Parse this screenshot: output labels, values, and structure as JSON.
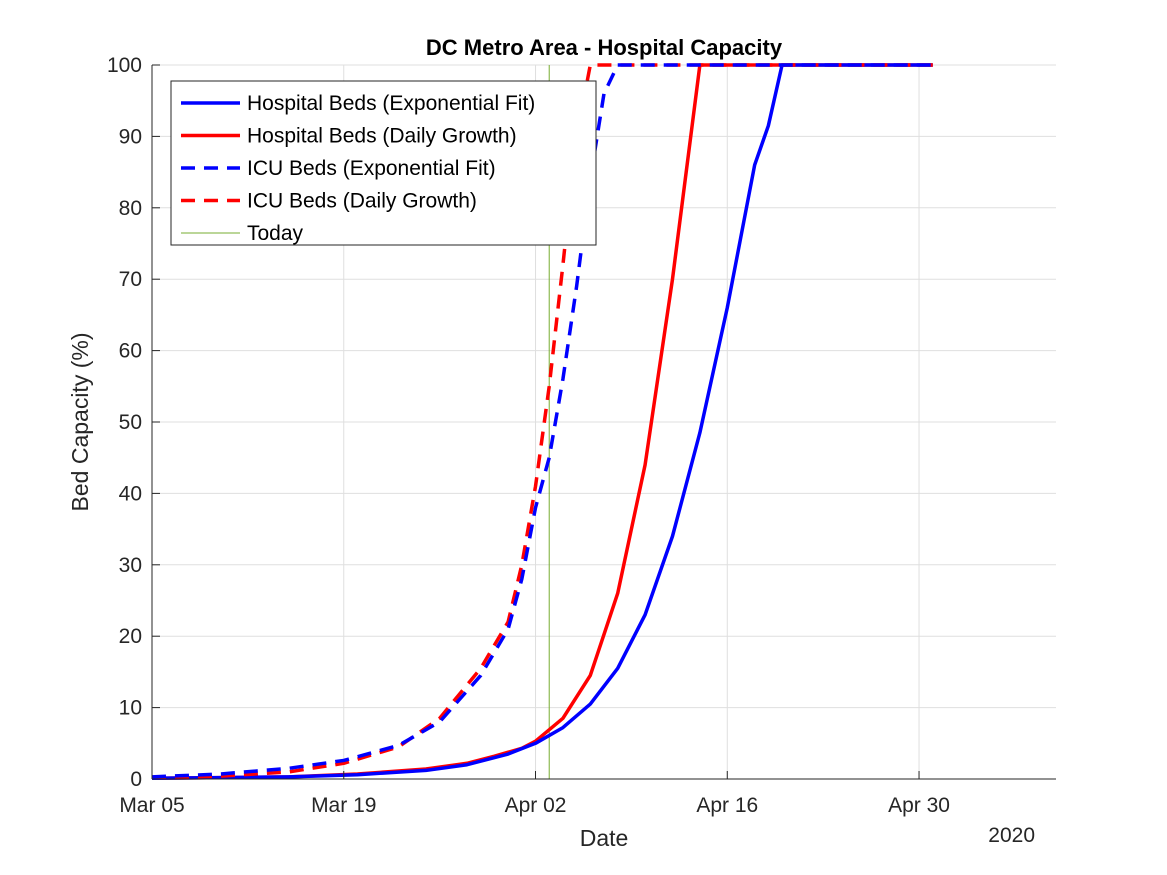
{
  "chart_data": {
    "type": "line",
    "title": "DC Metro Area - Hospital Capacity",
    "xlabel": "Date",
    "ylabel": "Bed Capacity (%)",
    "x_secondary_label": "2020",
    "x_unit": "date",
    "xlim": [
      "2020-03-05",
      "2020-05-10"
    ],
    "ylim": [
      0,
      100
    ],
    "xticks": [
      {
        "date": "2020-03-05",
        "label": "Mar 05"
      },
      {
        "date": "2020-03-19",
        "label": "Mar 19"
      },
      {
        "date": "2020-04-02",
        "label": "Apr 02"
      },
      {
        "date": "2020-04-16",
        "label": "Apr 16"
      },
      {
        "date": "2020-04-30",
        "label": "Apr 30"
      }
    ],
    "yticks": [
      0,
      10,
      20,
      30,
      40,
      50,
      60,
      70,
      80,
      90,
      100
    ],
    "grid": true,
    "legend_position": "top-left",
    "series": [
      {
        "name": "Hospital Beds (Exponential Fit)",
        "color": "#0000ff",
        "style": "solid",
        "points": [
          [
            "2020-03-05",
            0.1
          ],
          [
            "2020-03-10",
            0.2
          ],
          [
            "2020-03-15",
            0.3
          ],
          [
            "2020-03-20",
            0.6
          ],
          [
            "2020-03-25",
            1.2
          ],
          [
            "2020-03-28",
            2.0
          ],
          [
            "2020-03-31",
            3.5
          ],
          [
            "2020-04-02",
            5.0
          ],
          [
            "2020-04-04",
            7.2
          ],
          [
            "2020-04-06",
            10.5
          ],
          [
            "2020-04-08",
            15.5
          ],
          [
            "2020-04-10",
            23.0
          ],
          [
            "2020-04-12",
            34.0
          ],
          [
            "2020-04-14",
            48.5
          ],
          [
            "2020-04-16",
            66.0
          ],
          [
            "2020-04-18",
            86.0
          ],
          [
            "2020-04-19",
            91.5
          ],
          [
            "2020-04-20",
            100
          ],
          [
            "2020-05-01",
            100
          ]
        ]
      },
      {
        "name": "Hospital Beds (Daily Growth)",
        "color": "#ff0000",
        "style": "solid",
        "points": [
          [
            "2020-03-05",
            0.1
          ],
          [
            "2020-03-10",
            0.2
          ],
          [
            "2020-03-15",
            0.3
          ],
          [
            "2020-03-20",
            0.7
          ],
          [
            "2020-03-25",
            1.4
          ],
          [
            "2020-03-28",
            2.2
          ],
          [
            "2020-03-30",
            3.2
          ],
          [
            "2020-04-01",
            4.3
          ],
          [
            "2020-04-02",
            5.3
          ],
          [
            "2020-04-04",
            8.5
          ],
          [
            "2020-04-06",
            14.5
          ],
          [
            "2020-04-08",
            26.0
          ],
          [
            "2020-04-10",
            44.0
          ],
          [
            "2020-04-12",
            70.0
          ],
          [
            "2020-04-14",
            100
          ],
          [
            "2020-05-01",
            100
          ]
        ]
      },
      {
        "name": "ICU Beds (Exponential Fit)",
        "color": "#0000ff",
        "style": "dashed",
        "points": [
          [
            "2020-03-05",
            0.3
          ],
          [
            "2020-03-10",
            0.7
          ],
          [
            "2020-03-15",
            1.5
          ],
          [
            "2020-03-19",
            2.6
          ],
          [
            "2020-03-23",
            4.7
          ],
          [
            "2020-03-26",
            8.0
          ],
          [
            "2020-03-29",
            14.5
          ],
          [
            "2020-03-31",
            21.0
          ],
          [
            "2020-04-01",
            28.0
          ],
          [
            "2020-04-02",
            38.0
          ],
          [
            "2020-04-03",
            45.0
          ],
          [
            "2020-04-04",
            56.0
          ],
          [
            "2020-04-05",
            69.0
          ],
          [
            "2020-04-06",
            84.0
          ],
          [
            "2020-04-07",
            96.0
          ],
          [
            "2020-04-08",
            100
          ],
          [
            "2020-05-01",
            100
          ]
        ]
      },
      {
        "name": "ICU Beds (Daily Growth)",
        "color": "#ff0000",
        "style": "dashed",
        "points": [
          [
            "2020-03-05",
            0.2
          ],
          [
            "2020-03-10",
            0.4
          ],
          [
            "2020-03-15",
            1.0
          ],
          [
            "2020-03-19",
            2.2
          ],
          [
            "2020-03-23",
            4.5
          ],
          [
            "2020-03-26",
            8.5
          ],
          [
            "2020-03-29",
            15.5
          ],
          [
            "2020-03-31",
            22.0
          ],
          [
            "2020-04-01",
            30.0
          ],
          [
            "2020-04-02",
            41.0
          ],
          [
            "2020-04-03",
            55.0
          ],
          [
            "2020-04-04",
            72.0
          ],
          [
            "2020-04-05",
            90.0
          ],
          [
            "2020-04-06",
            100
          ],
          [
            "2020-05-01",
            100
          ]
        ]
      },
      {
        "name": "Today",
        "color": "#77ac30",
        "style": "vertical-line",
        "x": "2020-04-03"
      }
    ]
  }
}
